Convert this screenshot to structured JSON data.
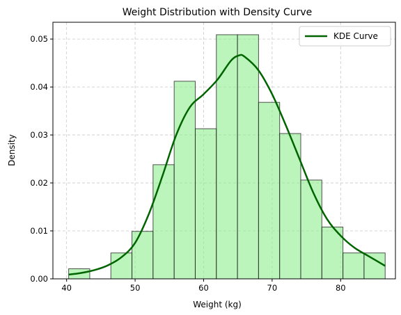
{
  "chart_data": {
    "type": "bar",
    "title": "Weight Distribution with Density Curve",
    "xlabel": "Weight (kg)",
    "ylabel": "Density",
    "xlim": [
      38.0,
      88.0
    ],
    "ylim": [
      0.0,
      0.0535
    ],
    "xticks": [
      40,
      50,
      60,
      70,
      80
    ],
    "yticks": [
      0.0,
      0.01,
      0.02,
      0.03,
      0.04,
      0.05
    ],
    "ytick_labels": [
      "0.00",
      "0.01",
      "0.02",
      "0.03",
      "0.04",
      "0.05"
    ],
    "grid": true,
    "legend_position": "top-right",
    "bin_edges": [
      40.3,
      43.38,
      46.46,
      49.54,
      52.62,
      55.7,
      58.78,
      61.86,
      64.94,
      68.02,
      71.1,
      74.18,
      77.26,
      80.34,
      83.42,
      86.5
    ],
    "bin_values": [
      0.0021,
      0.0,
      0.0054,
      0.0099,
      0.0238,
      0.0412,
      0.0313,
      0.0509,
      0.0509,
      0.0368,
      0.0303,
      0.0206,
      0.0108,
      0.0054,
      0.0054
    ],
    "series": [
      {
        "name": "KDE Curve",
        "type": "line",
        "color": "#006400",
        "x": [
          40.3,
          42,
          44,
          46,
          48,
          50,
          52,
          54,
          56,
          58,
          60,
          62,
          64,
          65.2,
          66,
          68,
          70,
          72,
          74,
          76,
          78,
          80,
          82,
          84,
          86.5
        ],
        "y": [
          0.0009,
          0.0012,
          0.0018,
          0.0028,
          0.0045,
          0.0075,
          0.0135,
          0.0215,
          0.03,
          0.0358,
          0.0385,
          0.0415,
          0.0455,
          0.0466,
          0.0463,
          0.0435,
          0.0385,
          0.032,
          0.025,
          0.018,
          0.0125,
          0.009,
          0.0065,
          0.0048,
          0.0027
        ]
      }
    ],
    "colors": {
      "bar_fill": "#90ee90",
      "bar_edge": "#1a1a1a",
      "kde_line": "#006400",
      "grid": "#c8c8c8"
    }
  }
}
